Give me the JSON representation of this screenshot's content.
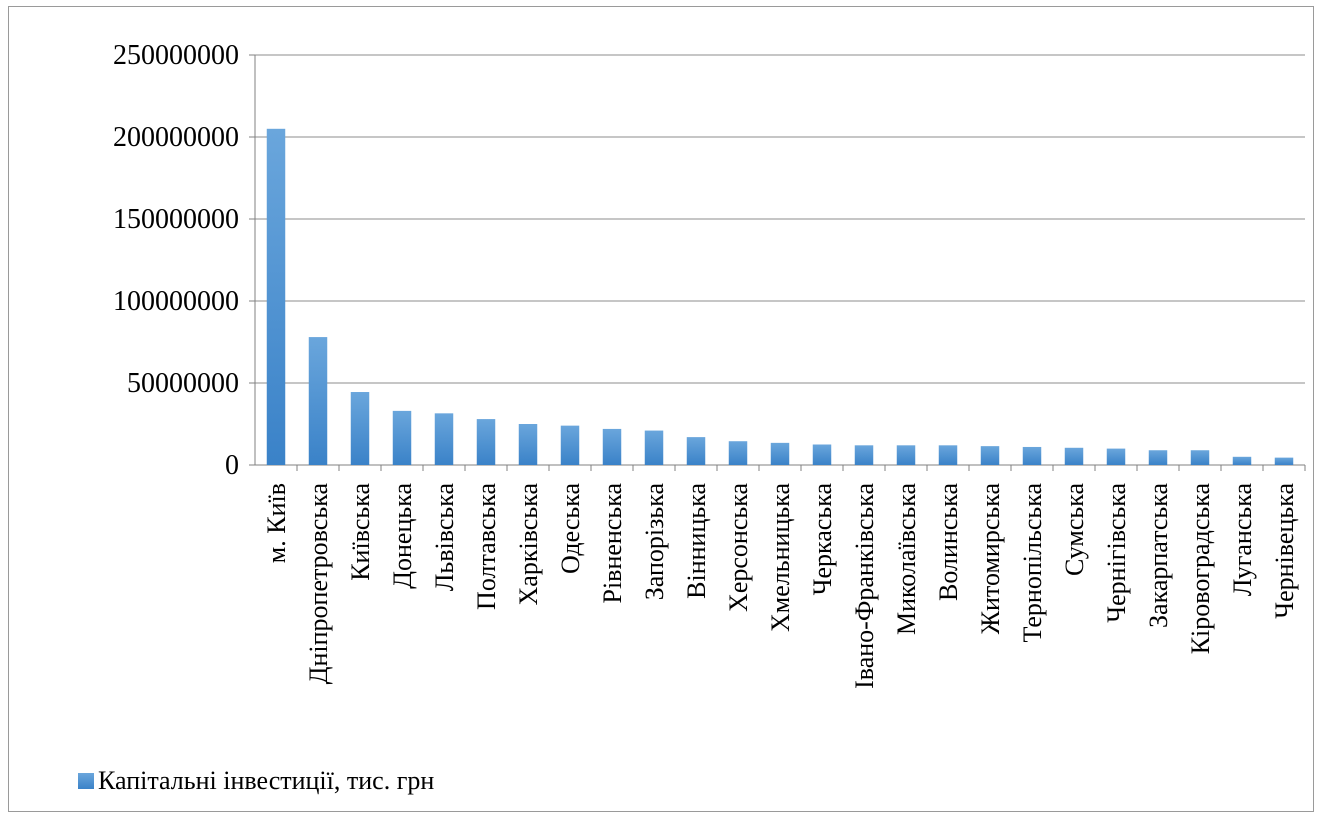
{
  "chart_data": {
    "type": "bar",
    "title": "",
    "xlabel": "",
    "ylabel": "",
    "ylim": [
      0,
      250000000
    ],
    "yticks": [
      "0",
      "50000000",
      "100000000",
      "150000000",
      "200000000",
      "250000000"
    ],
    "grid": true,
    "legend_position": "bottom-left",
    "bar_color": "#4a8fd4",
    "categories": [
      "м. Київ",
      "Дніпропетровська",
      "Київська",
      "Донецька",
      "Львівська",
      "Полтавська",
      "Харківська",
      "Одеська",
      "Рівненська",
      "Запорізька",
      "Вінницька",
      "Херсонська",
      "Хмельницька",
      "Черкаська",
      "Івано-Франківська",
      "Миколаївська",
      "Волинська",
      "Житомирська",
      "Тернопільська",
      "Сумська",
      "Чернігівська",
      "Закарпатська",
      "Кіровоградська",
      "Луганська",
      "Чернівецька"
    ],
    "series": [
      {
        "name": "Капітальні інвестиції, тис. грн",
        "values": [
          205000000,
          78000000,
          44500000,
          33000000,
          31500000,
          28000000,
          25000000,
          24000000,
          22000000,
          21000000,
          17000000,
          14500000,
          13500000,
          12500000,
          12000000,
          12000000,
          12000000,
          11500000,
          11000000,
          10500000,
          10000000,
          9000000,
          9000000,
          5000000,
          4500000
        ]
      }
    ]
  }
}
